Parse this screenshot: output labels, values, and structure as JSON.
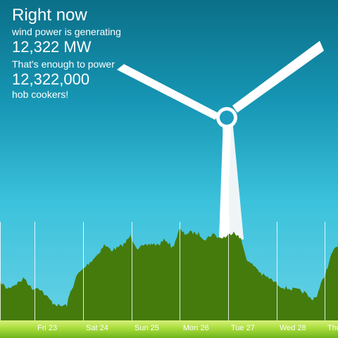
{
  "header": {
    "title": "Right now",
    "line1": "wind power is generating",
    "generation": "12,322 MW",
    "line2": "That's enough to power",
    "count": "12,322,000",
    "line3": "hob cookers!"
  },
  "timeline": {
    "days": [
      "Fri 23",
      "Sat 24",
      "Sun 25",
      "Mon 26",
      "Tue 27",
      "Wed 28",
      "Thu"
    ]
  },
  "colors": {
    "sky_top": "#0b6f88",
    "sky_bottom": "#6bd3e6",
    "area": "#447b0c",
    "ground": "#a9dd3c",
    "turbine": "#ffffff"
  },
  "icons": {
    "turbine": "wind-turbine-icon"
  }
}
